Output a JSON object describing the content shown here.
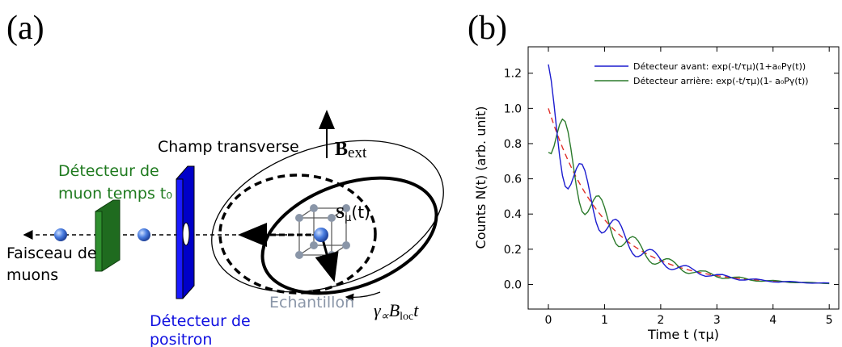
{
  "panel_a": {
    "label": "(a)",
    "field_label": "Champ transverse",
    "b_symbol": "B",
    "b_subscript": "ext",
    "t0_detector": [
      "Détecteur de",
      "muon temps t₀"
    ],
    "beam": [
      "Faisceau de",
      "muons"
    ],
    "positron_detector": [
      "Détecteur de",
      "positron"
    ],
    "sample": "Echantillon",
    "spin_symbol": "S",
    "spin_subscript": "μ",
    "spin_arg": "(t)",
    "precession": {
      "gamma": "γ",
      "gamma_sub": "∝",
      "b": "B",
      "b_sub": "loc",
      "t": "t"
    }
  },
  "chart_data": {
    "type": "line",
    "label": "(b)",
    "xlabel": "Time t (τμ)",
    "ylabel": "Counts N(t) (arb. unit)",
    "x": [
      0,
      0.05,
      0.1,
      0.15,
      0.2,
      0.25,
      0.3,
      0.35,
      0.4,
      0.45,
      0.5,
      0.55,
      0.6,
      0.65,
      0.7,
      0.75,
      0.8,
      0.85,
      0.9,
      0.95,
      1,
      1.05,
      1.1,
      1.15,
      1.2,
      1.25,
      1.3,
      1.35,
      1.4,
      1.45,
      1.5,
      1.55,
      1.6,
      1.65,
      1.7,
      1.75,
      1.8,
      1.85,
      1.9,
      1.95,
      2,
      2.05,
      2.1,
      2.15,
      2.2,
      2.25,
      2.3,
      2.35,
      2.4,
      2.45,
      2.5,
      2.6,
      2.7,
      2.8,
      2.9,
      3,
      3.1,
      3.2,
      3.3,
      3.4,
      3.5,
      3.6,
      3.7,
      3.8,
      3.9,
      4,
      4.1,
      4.2,
      4.3,
      4.4,
      4.5,
      4.6,
      4.7,
      4.8,
      4.9,
      5
    ],
    "series": [
      {
        "name": "Détecteur avant:  exp(-t/τμ)(1+a₀Pγ(t))",
        "color": "#1c1ccf",
        "dashed": false,
        "values": [
          1.25,
          1.159,
          1.024,
          0.872,
          0.729,
          0.619,
          0.557,
          0.543,
          0.568,
          0.613,
          0.659,
          0.686,
          0.683,
          0.647,
          0.582,
          0.502,
          0.422,
          0.354,
          0.31,
          0.292,
          0.298,
          0.319,
          0.345,
          0.365,
          0.37,
          0.358,
          0.329,
          0.288,
          0.244,
          0.204,
          0.175,
          0.159,
          0.158,
          0.166,
          0.18,
          0.193,
          0.199,
          0.196,
          0.184,
          0.164,
          0.141,
          0.118,
          0.099,
          0.088,
          0.084,
          0.087,
          0.094,
          0.101,
          0.106,
          0.107,
          0.102,
          0.081,
          0.057,
          0.046,
          0.049,
          0.056,
          0.056,
          0.046,
          0.033,
          0.025,
          0.025,
          0.03,
          0.031,
          0.026,
          0.019,
          0.014,
          0.013,
          0.016,
          0.017,
          0.015,
          0.011,
          0.008,
          0.007,
          0.008,
          0.009,
          0.008
        ]
      },
      {
        "name": "Détecteur arrière: exp(-t/τμ)(1- a₀Pγ(t))",
        "color": "#2b7a2b",
        "dashed": false,
        "values": [
          0.75,
          0.743,
          0.785,
          0.85,
          0.909,
          0.939,
          0.925,
          0.867,
          0.773,
          0.662,
          0.554,
          0.468,
          0.414,
          0.397,
          0.411,
          0.442,
          0.477,
          0.501,
          0.503,
          0.481,
          0.438,
          0.381,
          0.321,
          0.269,
          0.232,
          0.215,
          0.216,
          0.23,
          0.249,
          0.265,
          0.272,
          0.265,
          0.246,
          0.218,
          0.185,
          0.155,
          0.132,
          0.118,
          0.115,
          0.12,
          0.13,
          0.14,
          0.146,
          0.145,
          0.137,
          0.124,
          0.107,
          0.09,
          0.075,
          0.066,
          0.062,
          0.068,
          0.077,
          0.076,
          0.061,
          0.043,
          0.034,
          0.035,
          0.041,
          0.042,
          0.035,
          0.025,
          0.019,
          0.018,
          0.021,
          0.023,
          0.02,
          0.015,
          0.011,
          0.01,
          0.011,
          0.012,
          0.011,
          0.008,
          0.006,
          0.005
        ]
      },
      {
        "color": "#e0302a",
        "dashed": true,
        "values": [
          1,
          0.9512,
          0.9048,
          0.8607,
          0.8187,
          0.7788,
          0.7408,
          0.7047,
          0.6703,
          0.6376,
          0.6065,
          0.5769,
          0.5488,
          0.522,
          0.4966,
          0.4724,
          0.4493,
          0.4274,
          0.4066,
          0.3867,
          0.3679,
          0.3499,
          0.3329,
          0.3166,
          0.3012,
          0.2865,
          0.2725,
          0.2592,
          0.2466,
          0.2346,
          0.2231,
          0.2122,
          0.2019,
          0.192,
          0.1827,
          0.1738,
          0.1653,
          0.1572,
          0.1496,
          0.1423,
          0.1353,
          0.1287,
          0.1225,
          0.1165,
          0.1108,
          0.1054,
          0.1003,
          0.0954,
          0.0907,
          0.0863,
          0.0821,
          0.0743,
          0.0672,
          0.0608,
          0.055,
          0.0498,
          0.045,
          0.0408,
          0.0369,
          0.0334,
          0.0302,
          0.0273,
          0.0247,
          0.0224,
          0.0202,
          0.0183,
          0.0166,
          0.015,
          0.0136,
          0.0123,
          0.0111,
          0.0101,
          0.0091,
          0.0082,
          0.0074,
          0.0067
        ]
      }
    ],
    "xlim": [
      -0.36,
      5.17
    ],
    "ylim": [
      -0.14,
      1.35
    ],
    "xticks": [
      0,
      1,
      2,
      3,
      4,
      5
    ],
    "yticks": [
      {
        "value": 0,
        "label": "0.0"
      },
      0.2,
      0.4,
      0.6,
      0.8,
      {
        "value": 1,
        "label": "1.0"
      },
      1.2
    ],
    "grid": false,
    "legend": "upper right"
  }
}
